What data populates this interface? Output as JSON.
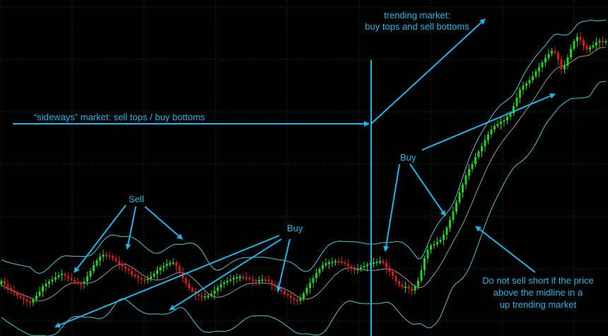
{
  "chart_data": {
    "type": "candlestick",
    "description_series": [
      "price candles",
      "upper band",
      "midline",
      "lower band"
    ],
    "colors": {
      "up_candle": "#19d419",
      "down_candle": "#d41919",
      "band": "#45c9d8",
      "midline": "#9a9a9a",
      "annotation": "#19b8e8",
      "grid": "#3a3a3a",
      "background": "#000000"
    },
    "closes": [
      397,
      402,
      407,
      410,
      414,
      418,
      421,
      423,
      426,
      428,
      423,
      418,
      412,
      405,
      401,
      398,
      395,
      392,
      389,
      387,
      390,
      393,
      396,
      398,
      400,
      401,
      398,
      391,
      383,
      375,
      368,
      363,
      360,
      361,
      362,
      365,
      369,
      373,
      377,
      380,
      383,
      388,
      391,
      393,
      395,
      396,
      394,
      391,
      387,
      382,
      378,
      376,
      373,
      372,
      371,
      376,
      385,
      393,
      401,
      407,
      412,
      416,
      418,
      420,
      419,
      418,
      415,
      411,
      406,
      402,
      399,
      397,
      395,
      393,
      392,
      391,
      392,
      393,
      395,
      396,
      397,
      396,
      395,
      395,
      398,
      402,
      405,
      409,
      412,
      416,
      418,
      421,
      424,
      425,
      422,
      415,
      407,
      400,
      393,
      386,
      380,
      375,
      372,
      371,
      370,
      369,
      370,
      371,
      373,
      376,
      380,
      382,
      380,
      378,
      376,
      374,
      372,
      371,
      370,
      369,
      372,
      378,
      384,
      390,
      398,
      402,
      406,
      405,
      408,
      411,
      405,
      397,
      382,
      365,
      353,
      347,
      345,
      342,
      339,
      332,
      322,
      311,
      299,
      286,
      272,
      261,
      248,
      239,
      232,
      222,
      214,
      207,
      198,
      190,
      183,
      178,
      175,
      172,
      170,
      165,
      160,
      150,
      138,
      127,
      121,
      118,
      113,
      108,
      101,
      95,
      88,
      82,
      76,
      72,
      75,
      84,
      98,
      93,
      81,
      69,
      58,
      52,
      57,
      65,
      70,
      67,
      64,
      60,
      58,
      59,
      58
    ],
    "annotations": {
      "trending": [
        "trending market:",
        "buy tops and sell bottoms"
      ],
      "sideways": "“sideways” market: sell tops / buy bottoms",
      "sell": "Sell",
      "buy_left": "Buy",
      "buy_right": "Buy",
      "note": [
        "Do not sell short if the price",
        "above the midline in a",
        "up trending market"
      ]
    }
  }
}
